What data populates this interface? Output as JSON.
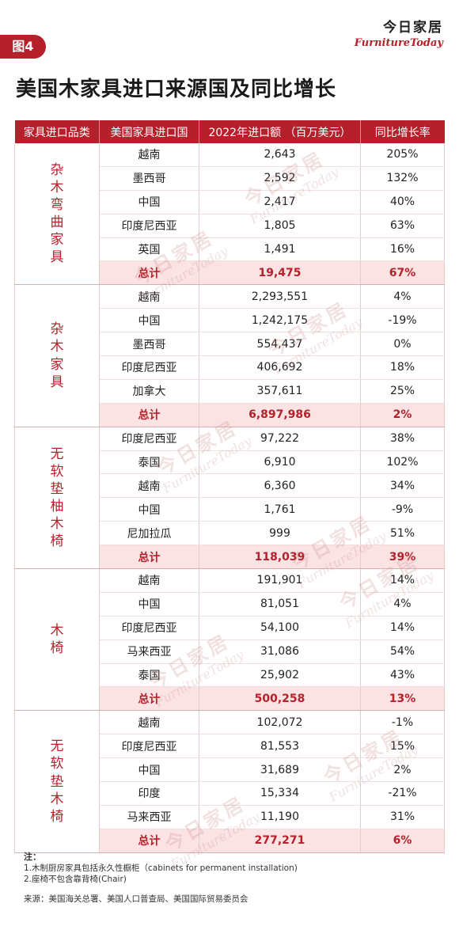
{
  "figure_tag": "图4",
  "brand": {
    "cn": "今日家居",
    "en": "FurnitureToday"
  },
  "title": "美国木家具进口来源国及同比增长",
  "headers": [
    "家具进口品类",
    "美国家具进口国",
    "2022年进口额 （百万美元）",
    "同比增长率"
  ],
  "groups": [
    {
      "category": "杂木弯曲家具",
      "rows": [
        [
          "越南",
          "2,643",
          "205%"
        ],
        [
          "墨西哥",
          "2,592",
          "132%"
        ],
        [
          "中国",
          "2,417",
          "40%"
        ],
        [
          "印度尼西亚",
          "1,805",
          "63%"
        ],
        [
          "英国",
          "1,491",
          "16%"
        ]
      ],
      "total": [
        "总计",
        "19,475",
        "67%"
      ]
    },
    {
      "category": "杂木家具",
      "rows": [
        [
          "越南",
          "2,293,551",
          "4%"
        ],
        [
          "中国",
          "1,242,175",
          "-19%"
        ],
        [
          "墨西哥",
          "554,437",
          "0%"
        ],
        [
          "印度尼西亚",
          "406,692",
          "18%"
        ],
        [
          "加拿大",
          "357,611",
          "25%"
        ]
      ],
      "total": [
        "总计",
        "6,897,986",
        "2%"
      ]
    },
    {
      "category": "无软垫柚木椅",
      "rows": [
        [
          "印度尼西亚",
          "97,222",
          "38%"
        ],
        [
          "泰国",
          "6,910",
          "102%"
        ],
        [
          "越南",
          "6,360",
          "34%"
        ],
        [
          "中国",
          "1,761",
          "-9%"
        ],
        [
          "尼加拉瓜",
          "999",
          "51%"
        ]
      ],
      "total": [
        "总计",
        "118,039",
        "39%"
      ]
    },
    {
      "category": "木椅",
      "rows": [
        [
          "越南",
          "191,901",
          "14%"
        ],
        [
          "中国",
          "81,051",
          "4%"
        ],
        [
          "印度尼西亚",
          "54,100",
          "14%"
        ],
        [
          "马来西亚",
          "31,086",
          "54%"
        ],
        [
          "泰国",
          "25,902",
          "43%"
        ]
      ],
      "total": [
        "总计",
        "500,258",
        "13%"
      ]
    },
    {
      "category": "无软垫木椅",
      "rows": [
        [
          "越南",
          "102,072",
          "-1%"
        ],
        [
          "印度尼西亚",
          "81,553",
          "15%"
        ],
        [
          "中国",
          "31,689",
          "2%"
        ],
        [
          "印度",
          "15,334",
          "-21%"
        ],
        [
          "马来西亚",
          "11,190",
          "31%"
        ]
      ],
      "total": [
        "总计",
        "277,271",
        "6%"
      ]
    }
  ],
  "notes": {
    "label": "注：",
    "lines": [
      "1.木制厨房家具包括永久性橱柜（cabinets for permanent installation)",
      "2.座椅不包含靠背椅(Chair)"
    ]
  },
  "source": "来源：美国海关总署、美国人口普查局、美国国际贸易委员会",
  "watermark": {
    "cn": "今日家居",
    "en": "FurnitureToday"
  },
  "colors": {
    "accent": "#b5202b",
    "total_bg": "#fbe3e4"
  }
}
